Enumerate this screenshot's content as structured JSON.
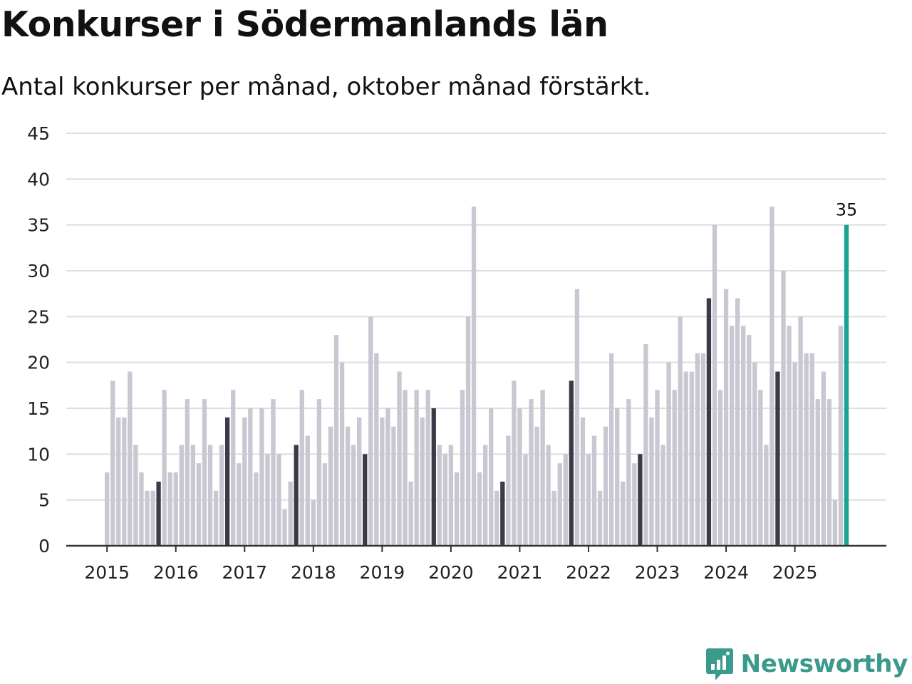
{
  "header": {
    "title": "Konkurser i Södermanlands län",
    "subtitle": "Antal konkurser per månad, oktober månad förstärkt."
  },
  "brand": {
    "name": "Newsworthy"
  },
  "colors": {
    "bar": "#c8c7d2",
    "october": "#3b3a47",
    "latest": "#1aa395",
    "grid": "#dedde3",
    "axis": "#333333"
  },
  "chart_data": {
    "type": "bar",
    "title": "Konkurser i Södermanlands län",
    "subtitle": "Antal konkurser per månad, oktober månad förstärkt.",
    "xlabel": "",
    "ylabel": "",
    "ylim": [
      0,
      45
    ],
    "yticks": [
      "0",
      "5",
      "10",
      "15",
      "20",
      "25",
      "30",
      "35",
      "40",
      "45"
    ],
    "grid": true,
    "start_month": "2015-01",
    "xtick_labels": [
      "2015",
      "2016",
      "2017",
      "2018",
      "2019",
      "2020",
      "2021",
      "2022",
      "2023",
      "2024",
      "2025"
    ],
    "highlight_month": "oktober",
    "latest_value_label": "35",
    "values": [
      8,
      18,
      14,
      14,
      19,
      11,
      8,
      6,
      6,
      7,
      17,
      8,
      8,
      11,
      16,
      11,
      9,
      16,
      11,
      6,
      11,
      14,
      17,
      9,
      14,
      15,
      8,
      15,
      10,
      16,
      10,
      4,
      7,
      11,
      17,
      12,
      5,
      16,
      9,
      13,
      23,
      20,
      13,
      11,
      14,
      10,
      25,
      21,
      14,
      15,
      13,
      19,
      17,
      7,
      17,
      14,
      17,
      15,
      11,
      10,
      11,
      8,
      17,
      25,
      37,
      8,
      11,
      15,
      6,
      7,
      12,
      18,
      15,
      10,
      16,
      13,
      17,
      11,
      6,
      9,
      10,
      18,
      28,
      14,
      10,
      12,
      6,
      13,
      21,
      15,
      7,
      16,
      9,
      10,
      22,
      14,
      17,
      11,
      20,
      17,
      25,
      19,
      19,
      21,
      21,
      27,
      35,
      17,
      28,
      24,
      27,
      24,
      23,
      20,
      17,
      11,
      37,
      19,
      30,
      24,
      20,
      25,
      21,
      21,
      16,
      19,
      16,
      5,
      24,
      35
    ]
  }
}
